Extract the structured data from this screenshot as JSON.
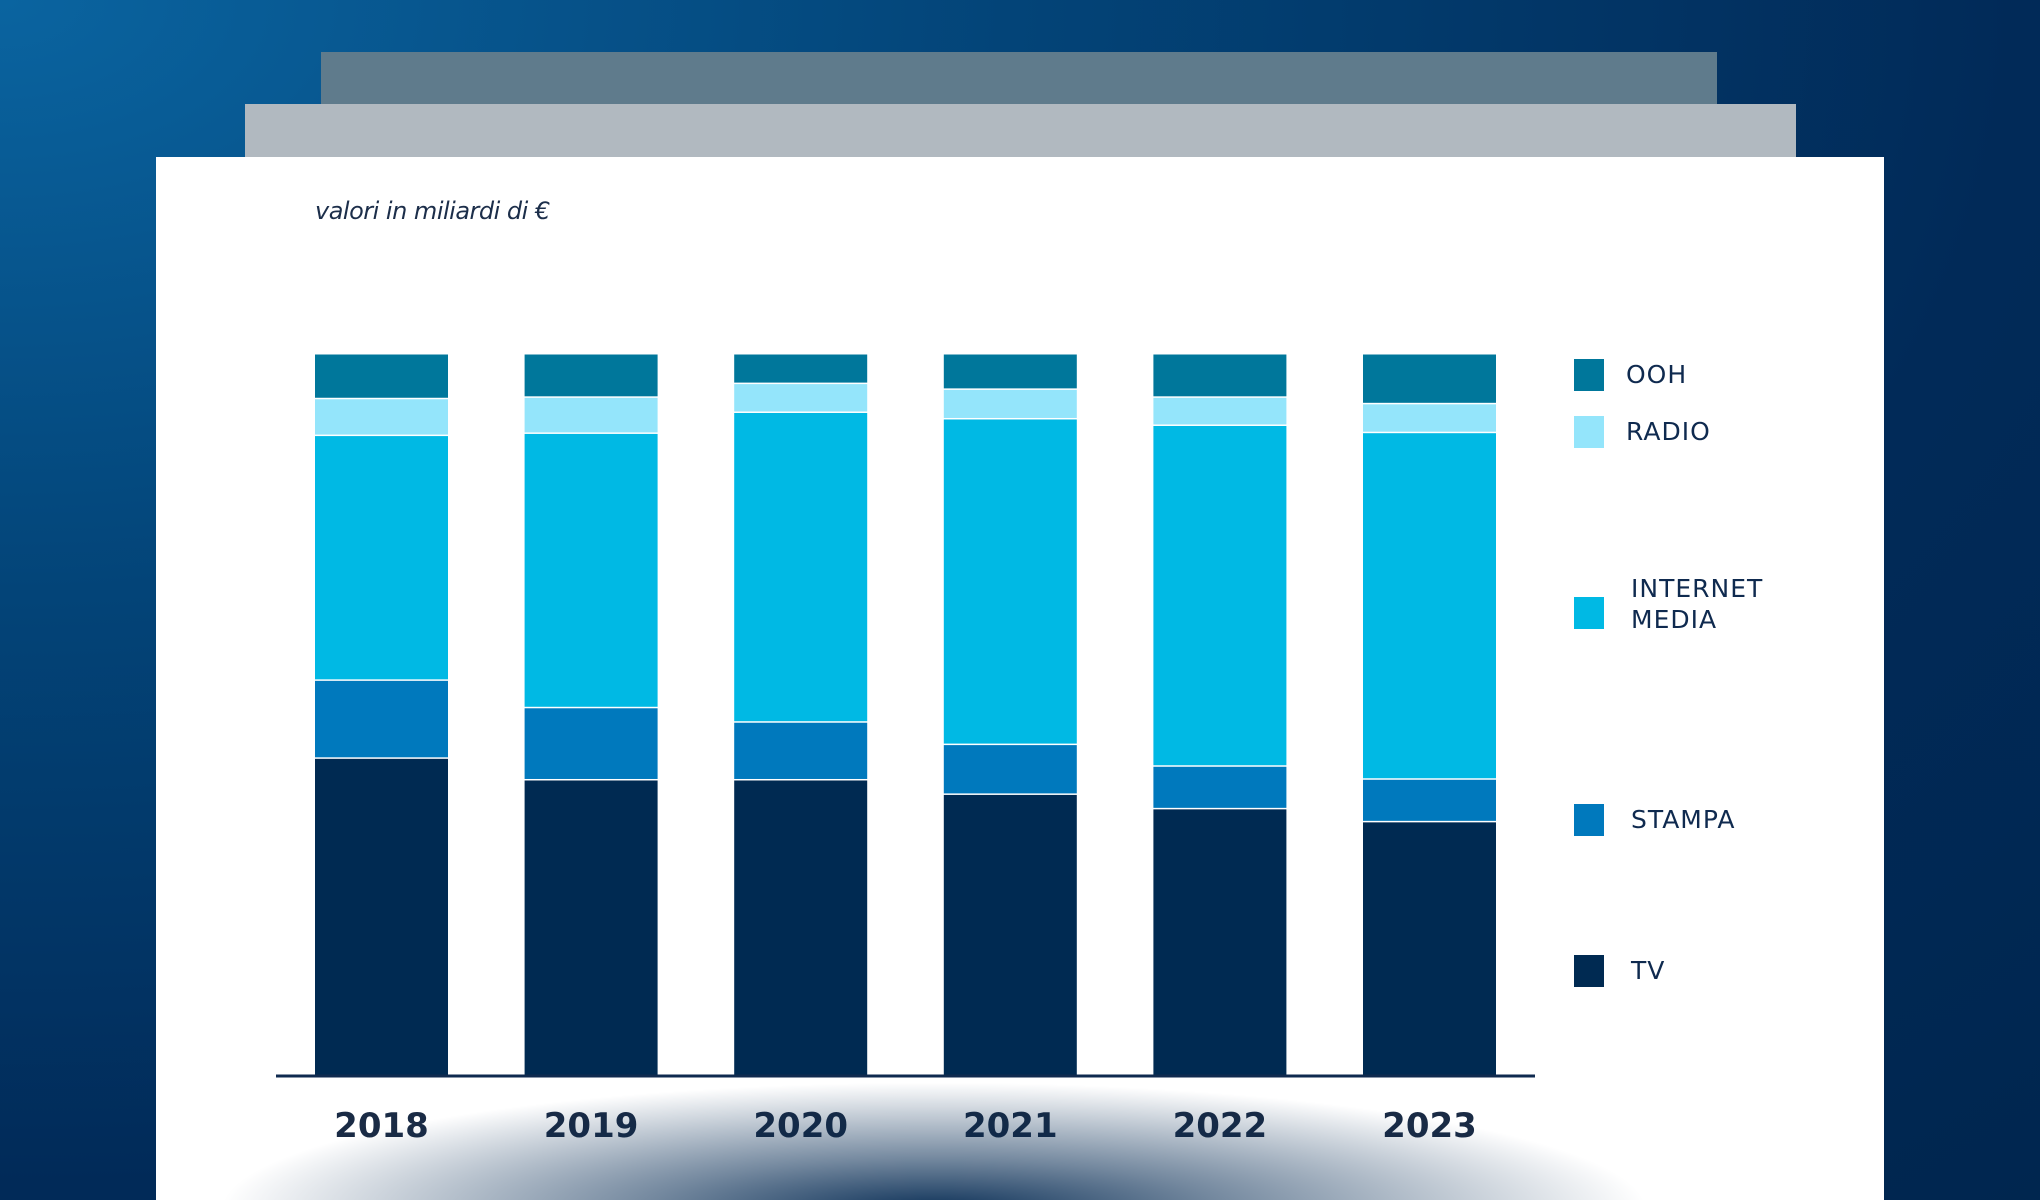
{
  "subtitle": "valori in miliardi di €",
  "chart_data": {
    "type": "bar",
    "stacked": true,
    "title": "",
    "subtitle": "valori in miliardi di €",
    "xlabel": "",
    "ylabel": "",
    "categories": [
      "2018",
      "2019",
      "2020",
      "2021",
      "2022",
      "2023"
    ],
    "ylim": [
      0,
      100
    ],
    "unit": "share of total (%)",
    "grid": false,
    "legend_position": "right",
    "series": [
      {
        "name": "TV",
        "color": "#002a52",
        "values": [
          44.0,
          41.0,
          41.0,
          39.0,
          37.0,
          35.2
        ]
      },
      {
        "name": "STAMPA",
        "color": "#0079bd",
        "values": [
          10.8,
          10.0,
          8.0,
          6.9,
          5.9,
          5.9
        ]
      },
      {
        "name": "INTERNET MEDIA",
        "color": "#00b9e4",
        "values": [
          33.9,
          38.0,
          42.9,
          45.1,
          47.2,
          48.0
        ]
      },
      {
        "name": "RADIO",
        "color": "#94e5fb",
        "values": [
          5.1,
          5.0,
          4.0,
          4.1,
          3.9,
          4.0
        ]
      },
      {
        "name": "OOH",
        "color": "#00779b",
        "values": [
          6.2,
          6.0,
          4.1,
          4.9,
          6.0,
          6.9
        ]
      }
    ]
  },
  "legend": [
    {
      "label": "OOH",
      "color": "#00779b"
    },
    {
      "label": "RADIO",
      "color": "#94e5fb"
    },
    {
      "label": "INTERNET\nMEDIA",
      "color": "#00b9e4"
    },
    {
      "label": "STAMPA",
      "color": "#0079bd"
    },
    {
      "label": "TV",
      "color": "#002a52"
    }
  ]
}
